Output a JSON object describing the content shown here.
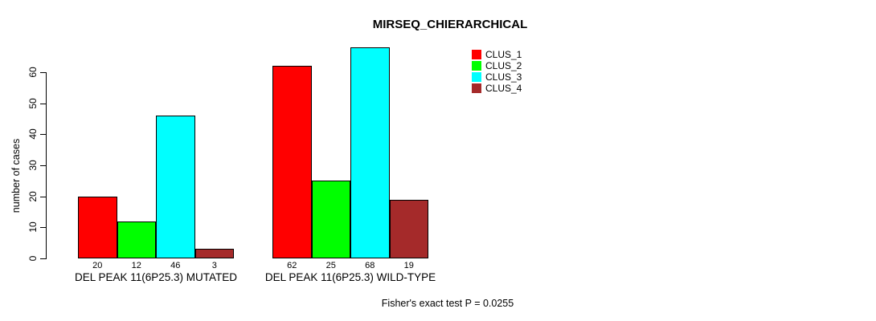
{
  "chart_data": {
    "type": "bar",
    "title": "MIRSEQ_CHIERARCHICAL",
    "ylabel": "number of cases",
    "xlabel": "",
    "ylim": [
      0,
      68
    ],
    "yticks": [
      0,
      10,
      20,
      30,
      40,
      50,
      60
    ],
    "grid": false,
    "legend_position": "top-right",
    "categories": [
      "DEL PEAK 11(6P25.3) MUTATED",
      "DEL PEAK 11(6P25.3) WILD-TYPE"
    ],
    "series": [
      {
        "name": "CLUS_1",
        "color": "#ff0000",
        "values": [
          20,
          62
        ]
      },
      {
        "name": "CLUS_2",
        "color": "#00ff00",
        "values": [
          12,
          25
        ]
      },
      {
        "name": "CLUS_3",
        "color": "#00ffff",
        "values": [
          46,
          68
        ]
      },
      {
        "name": "CLUS_4",
        "color": "#a52a2a",
        "values": [
          3,
          19
        ]
      }
    ],
    "bar_value_labels_shown": true,
    "footer": "Fisher's exact test P = 0.0255"
  }
}
